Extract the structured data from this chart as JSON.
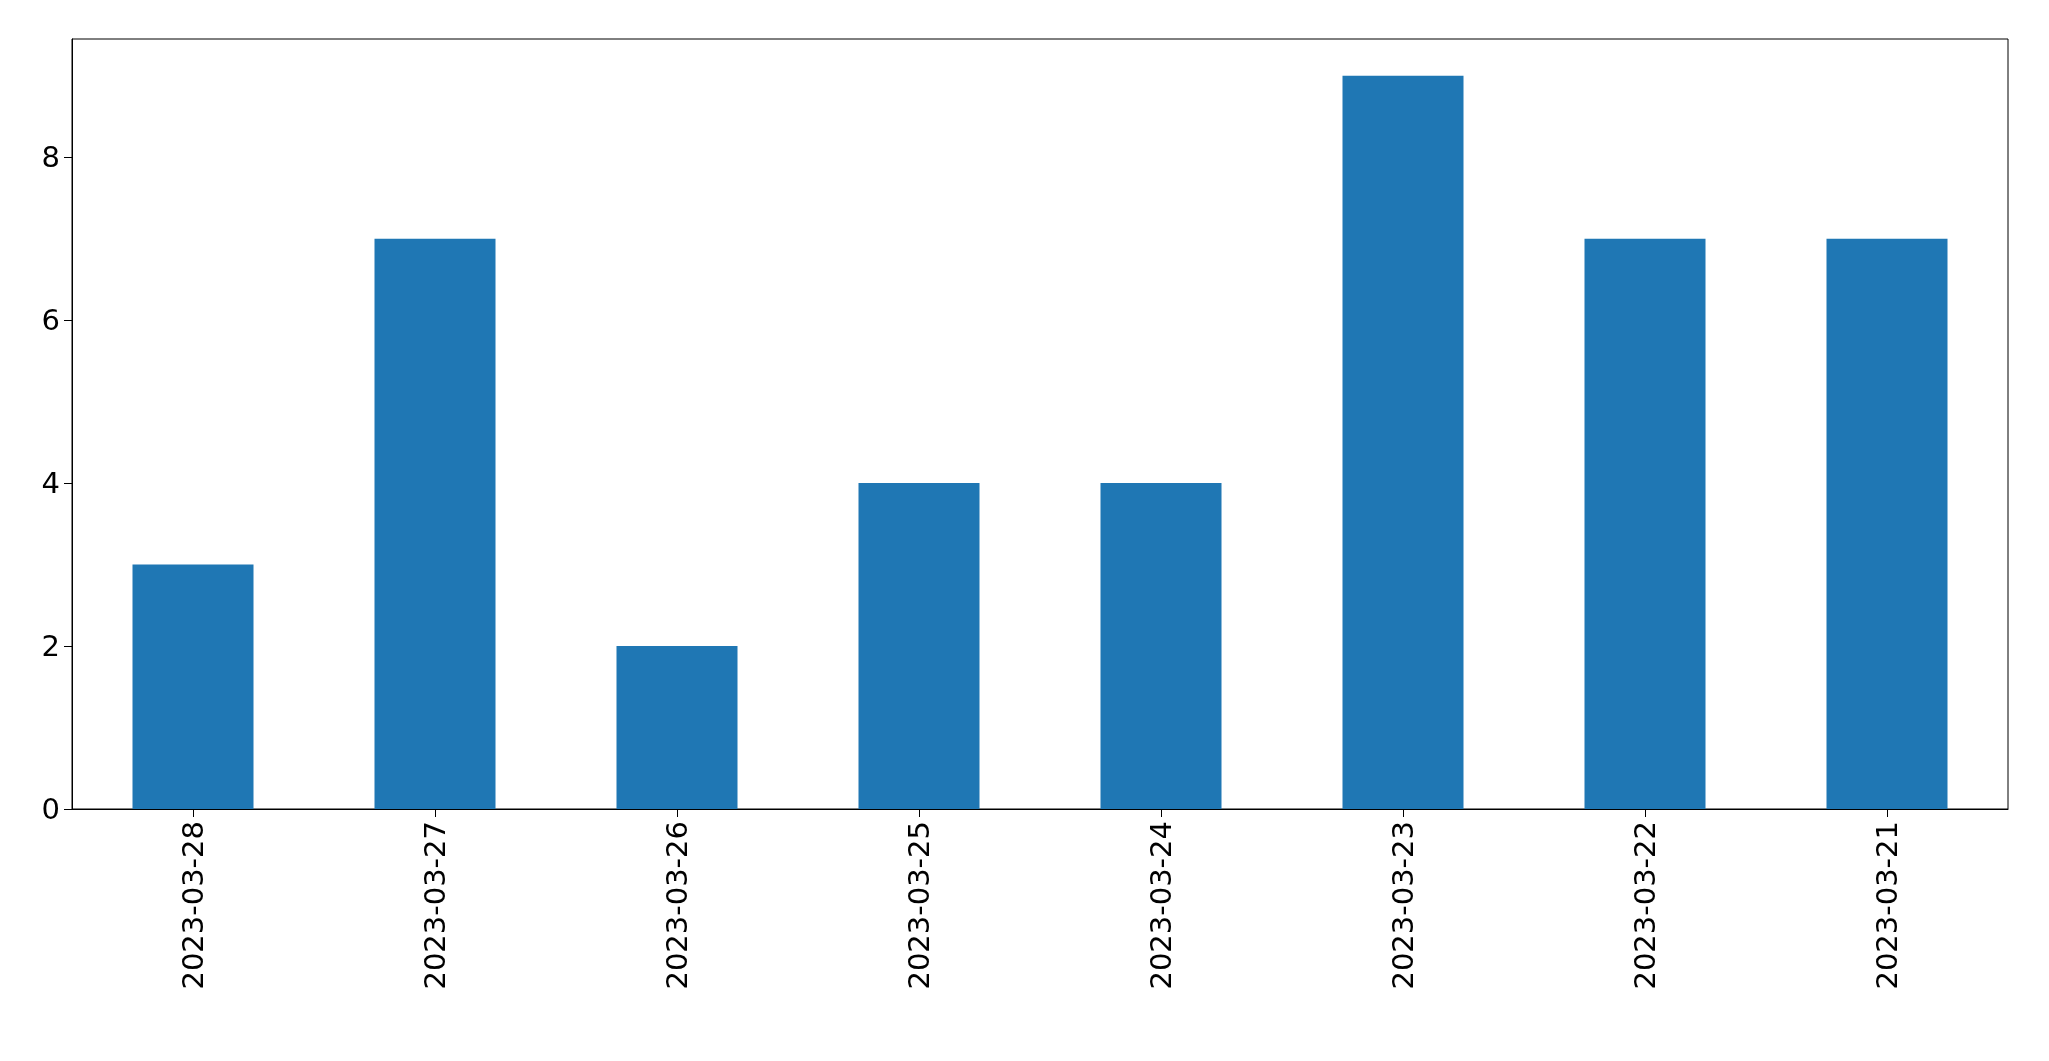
{
  "chart_data": {
    "type": "bar",
    "categories": [
      "2023-03-28",
      "2023-03-27",
      "2023-03-26",
      "2023-03-25",
      "2023-03-24",
      "2023-03-23",
      "2023-03-22",
      "2023-03-21"
    ],
    "values": [
      3,
      7,
      2,
      4,
      4,
      9,
      7,
      7
    ],
    "color": "#1f77b4",
    "ylim": [
      0,
      9.45
    ],
    "yticks": [
      0,
      2,
      4,
      6,
      8
    ],
    "grid": false
  }
}
